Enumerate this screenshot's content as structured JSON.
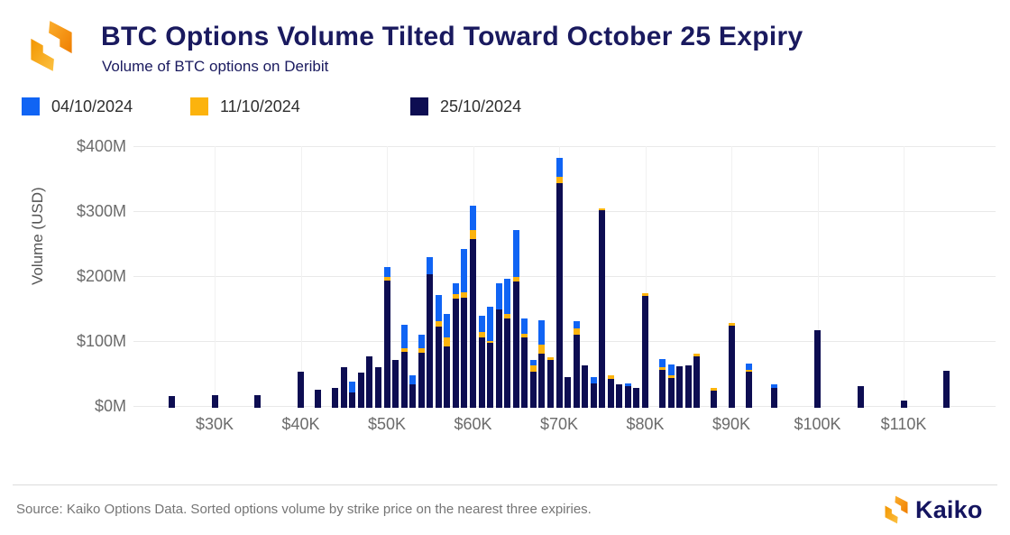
{
  "header": {
    "title": "BTC Options Volume Tilted Toward October 25 Expiry",
    "subtitle": "Volume of BTC options on Deribit"
  },
  "footer": {
    "source": "Source: Kaiko Options Data. Sorted options volume by strike price on the nearest three expiries.",
    "brand": "Kaiko"
  },
  "colors": {
    "blue_04": "#1064f4",
    "orange_11": "#fcb30d",
    "navy_25": "#0d0d52",
    "title_navy": "#1a1a5f",
    "axis_gray": "#6b6b6b",
    "logo_orange_light": "#fcc243",
    "logo_orange_dark": "#f07d00"
  },
  "chart_data": {
    "type": "bar",
    "stacked": true,
    "title": "BTC Options Volume Tilted Toward October 25 Expiry",
    "subtitle": "Volume of BTC options on Deribit",
    "ylabel": "Volume (USD)",
    "unit": "$M (USD millions)",
    "ylim": [
      0,
      400
    ],
    "y_ticks": [
      {
        "value": 0,
        "label": "$0M"
      },
      {
        "value": 100,
        "label": "$100M"
      },
      {
        "value": 200,
        "label": "$200M"
      },
      {
        "value": 300,
        "label": "$300M"
      },
      {
        "value": 400,
        "label": "$400M"
      }
    ],
    "x_ticks": [
      {
        "strike_k": 30,
        "label": "$30K"
      },
      {
        "strike_k": 40,
        "label": "$40K"
      },
      {
        "strike_k": 50,
        "label": "$50K"
      },
      {
        "strike_k": 60,
        "label": "$60K"
      },
      {
        "strike_k": 70,
        "label": "$70K"
      },
      {
        "strike_k": 80,
        "label": "$80K"
      },
      {
        "strike_k": 90,
        "label": "$90K"
      },
      {
        "strike_k": 100,
        "label": "$100K"
      },
      {
        "strike_k": 110,
        "label": "$110K"
      }
    ],
    "grid": true,
    "legend_position": "top-left",
    "series": [
      {
        "name": "04/10/2024",
        "color": "#1064f4"
      },
      {
        "name": "11/10/2024",
        "color": "#fcb30d"
      },
      {
        "name": "25/10/2024",
        "color": "#0d0d52"
      }
    ],
    "bars_note": "values are [04/10/2024, 11/10/2024, 25/10/2024] in $M, stacked with 25/10 at bottom, 11/10 middle, 04/10 on top",
    "bars": [
      {
        "strike_k": 25,
        "values": [
          0,
          0,
          18
        ]
      },
      {
        "strike_k": 30,
        "values": [
          0,
          0,
          20
        ]
      },
      {
        "strike_k": 35,
        "values": [
          0,
          0,
          20
        ]
      },
      {
        "strike_k": 40,
        "values": [
          0,
          0,
          55
        ]
      },
      {
        "strike_k": 42,
        "values": [
          0,
          0,
          28
        ]
      },
      {
        "strike_k": 44,
        "values": [
          0,
          0,
          30
        ]
      },
      {
        "strike_k": 45,
        "values": [
          0,
          0,
          62
        ]
      },
      {
        "strike_k": 46,
        "values": [
          17,
          0,
          23
        ]
      },
      {
        "strike_k": 47,
        "values": [
          0,
          0,
          54
        ]
      },
      {
        "strike_k": 48,
        "values": [
          0,
          0,
          79
        ]
      },
      {
        "strike_k": 49,
        "values": [
          0,
          0,
          62
        ]
      },
      {
        "strike_k": 50,
        "values": [
          15,
          6,
          196
        ]
      },
      {
        "strike_k": 51,
        "values": [
          0,
          0,
          73
        ]
      },
      {
        "strike_k": 52,
        "values": [
          36,
          6,
          86
        ]
      },
      {
        "strike_k": 53,
        "values": [
          14,
          0,
          36
        ]
      },
      {
        "strike_k": 54,
        "values": [
          21,
          6,
          85
        ]
      },
      {
        "strike_k": 55,
        "values": [
          26,
          0,
          206
        ]
      },
      {
        "strike_k": 56,
        "values": [
          40,
          8,
          125
        ]
      },
      {
        "strike_k": 57,
        "values": [
          35,
          14,
          95
        ]
      },
      {
        "strike_k": 58,
        "values": [
          16,
          7,
          168
        ]
      },
      {
        "strike_k": 59,
        "values": [
          66,
          9,
          169
        ]
      },
      {
        "strike_k": 60,
        "values": [
          37,
          14,
          260
        ]
      },
      {
        "strike_k": 61,
        "values": [
          25,
          8,
          108
        ]
      },
      {
        "strike_k": 62,
        "values": [
          53,
          3,
          100
        ]
      },
      {
        "strike_k": 63,
        "values": [
          40,
          0,
          151
        ]
      },
      {
        "strike_k": 64,
        "values": [
          55,
          6,
          138
        ]
      },
      {
        "strike_k": 65,
        "values": [
          72,
          7,
          194
        ]
      },
      {
        "strike_k": 66,
        "values": [
          23,
          6,
          108
        ]
      },
      {
        "strike_k": 67,
        "values": [
          8,
          10,
          55
        ]
      },
      {
        "strike_k": 68,
        "values": [
          38,
          13,
          84
        ]
      },
      {
        "strike_k": 69,
        "values": [
          0,
          4,
          74
        ]
      },
      {
        "strike_k": 70,
        "values": [
          30,
          9,
          346
        ]
      },
      {
        "strike_k": 71,
        "values": [
          0,
          0,
          47
        ]
      },
      {
        "strike_k": 72,
        "values": [
          12,
          9,
          113
        ]
      },
      {
        "strike_k": 73,
        "values": [
          0,
          0,
          65
        ]
      },
      {
        "strike_k": 74,
        "values": [
          10,
          0,
          37
        ]
      },
      {
        "strike_k": 75,
        "values": [
          0,
          3,
          304
        ]
      },
      {
        "strike_k": 76,
        "values": [
          0,
          5,
          45
        ]
      },
      {
        "strike_k": 77,
        "values": [
          0,
          0,
          36
        ]
      },
      {
        "strike_k": 78,
        "values": [
          5,
          0,
          33
        ]
      },
      {
        "strike_k": 79,
        "values": [
          0,
          0,
          30
        ]
      },
      {
        "strike_k": 80,
        "values": [
          0,
          5,
          172
        ]
      },
      {
        "strike_k": 82,
        "values": [
          12,
          5,
          58
        ]
      },
      {
        "strike_k": 83,
        "values": [
          17,
          4,
          46
        ]
      },
      {
        "strike_k": 84,
        "values": [
          0,
          0,
          64
        ]
      },
      {
        "strike_k": 85,
        "values": [
          0,
          0,
          65
        ]
      },
      {
        "strike_k": 86,
        "values": [
          0,
          5,
          79
        ]
      },
      {
        "strike_k": 88,
        "values": [
          0,
          3,
          27
        ]
      },
      {
        "strike_k": 90,
        "values": [
          0,
          4,
          127
        ]
      },
      {
        "strike_k": 92,
        "values": [
          10,
          3,
          55
        ]
      },
      {
        "strike_k": 95,
        "values": [
          6,
          0,
          30
        ]
      },
      {
        "strike_k": 100,
        "values": [
          0,
          0,
          120
        ]
      },
      {
        "strike_k": 105,
        "values": [
          0,
          0,
          33
        ]
      },
      {
        "strike_k": 110,
        "values": [
          0,
          0,
          11
        ]
      },
      {
        "strike_k": 115,
        "values": [
          0,
          0,
          57
        ]
      }
    ]
  }
}
